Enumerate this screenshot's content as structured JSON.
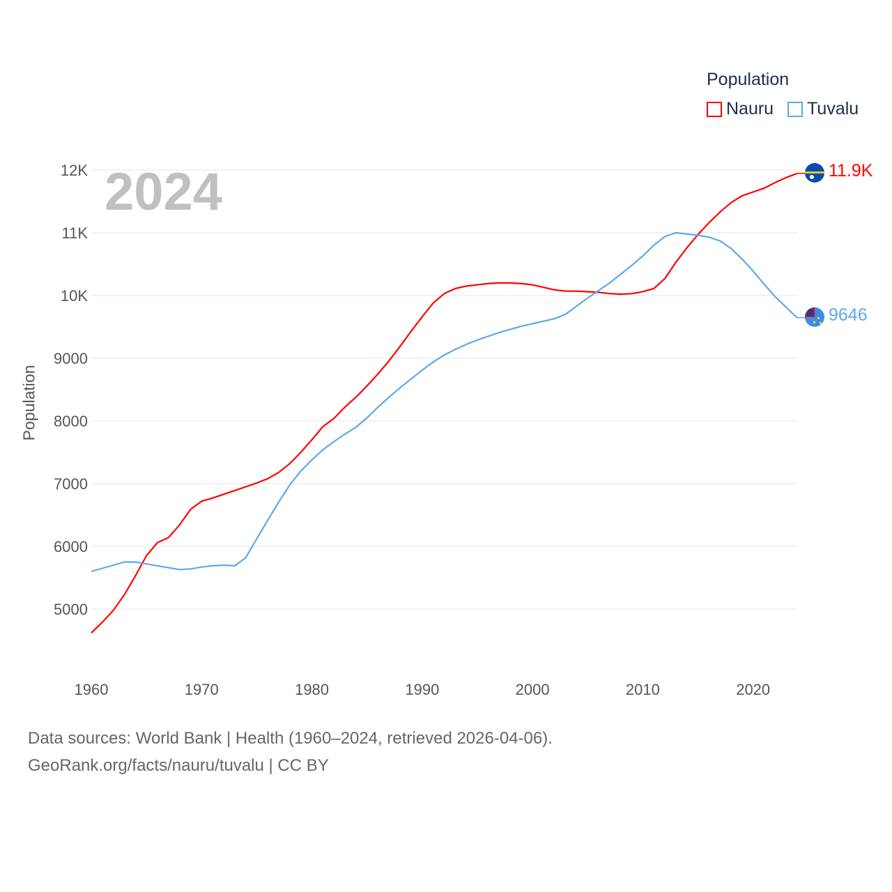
{
  "chart_data": {
    "type": "line",
    "title": "",
    "year_label": "2024",
    "xlabel": "",
    "ylabel": "Population",
    "legend_title": "Population",
    "legend_position": "top-right",
    "grid": true,
    "xlim": [
      1960,
      2024
    ],
    "ylim": [
      4300,
      12000
    ],
    "x_ticks": [
      1960,
      1970,
      1980,
      1990,
      2000,
      2010,
      2020
    ],
    "y_ticks": [
      5000,
      6000,
      7000,
      8000,
      9000,
      10000,
      11000,
      12000
    ],
    "y_tick_labels": [
      "5000",
      "6000",
      "7000",
      "8000",
      "9000",
      "10K",
      "11K",
      "12K"
    ],
    "x_start": 1960,
    "series": [
      {
        "name": "Nauru",
        "color": "#ff0000",
        "end_label": "11.9K",
        "values": [
          4620,
          4790,
          4980,
          5230,
          5530,
          5850,
          6060,
          6140,
          6340,
          6590,
          6720,
          6770,
          6830,
          6890,
          6950,
          7010,
          7080,
          7180,
          7320,
          7500,
          7700,
          7910,
          8040,
          8220,
          8380,
          8560,
          8750,
          8960,
          9190,
          9430,
          9660,
          9880,
          10030,
          10110,
          10150,
          10170,
          10190,
          10200,
          10200,
          10190,
          10170,
          10130,
          10090,
          10070,
          10070,
          10060,
          10050,
          10030,
          10020,
          10030,
          10060,
          10110,
          10270,
          10530,
          10760,
          10970,
          11160,
          11330,
          11480,
          11590,
          11650,
          11710,
          11800,
          11880,
          11947
        ]
      },
      {
        "name": "Tuvalu",
        "color": "#5ca8ec",
        "end_label": "9646",
        "values": [
          5600,
          5650,
          5700,
          5750,
          5750,
          5720,
          5690,
          5660,
          5630,
          5640,
          5670,
          5690,
          5700,
          5690,
          5820,
          6120,
          6420,
          6710,
          6980,
          7200,
          7380,
          7540,
          7670,
          7790,
          7900,
          8050,
          8220,
          8380,
          8530,
          8670,
          8810,
          8940,
          9050,
          9140,
          9220,
          9290,
          9350,
          9410,
          9460,
          9510,
          9550,
          9590,
          9630,
          9700,
          9830,
          9960,
          10080,
          10200,
          10340,
          10480,
          10630,
          10800,
          10940,
          11000,
          10980,
          10960,
          10930,
          10870,
          10750,
          10580,
          10390,
          10180,
          9980,
          9810,
          9646
        ]
      }
    ]
  },
  "footer": {
    "line1": "Data sources: World Bank | Health (1960–2024, retrieved 2026-04-06).",
    "line2": "GeoRank.org/facts/nauru/tuvalu | CC BY"
  }
}
